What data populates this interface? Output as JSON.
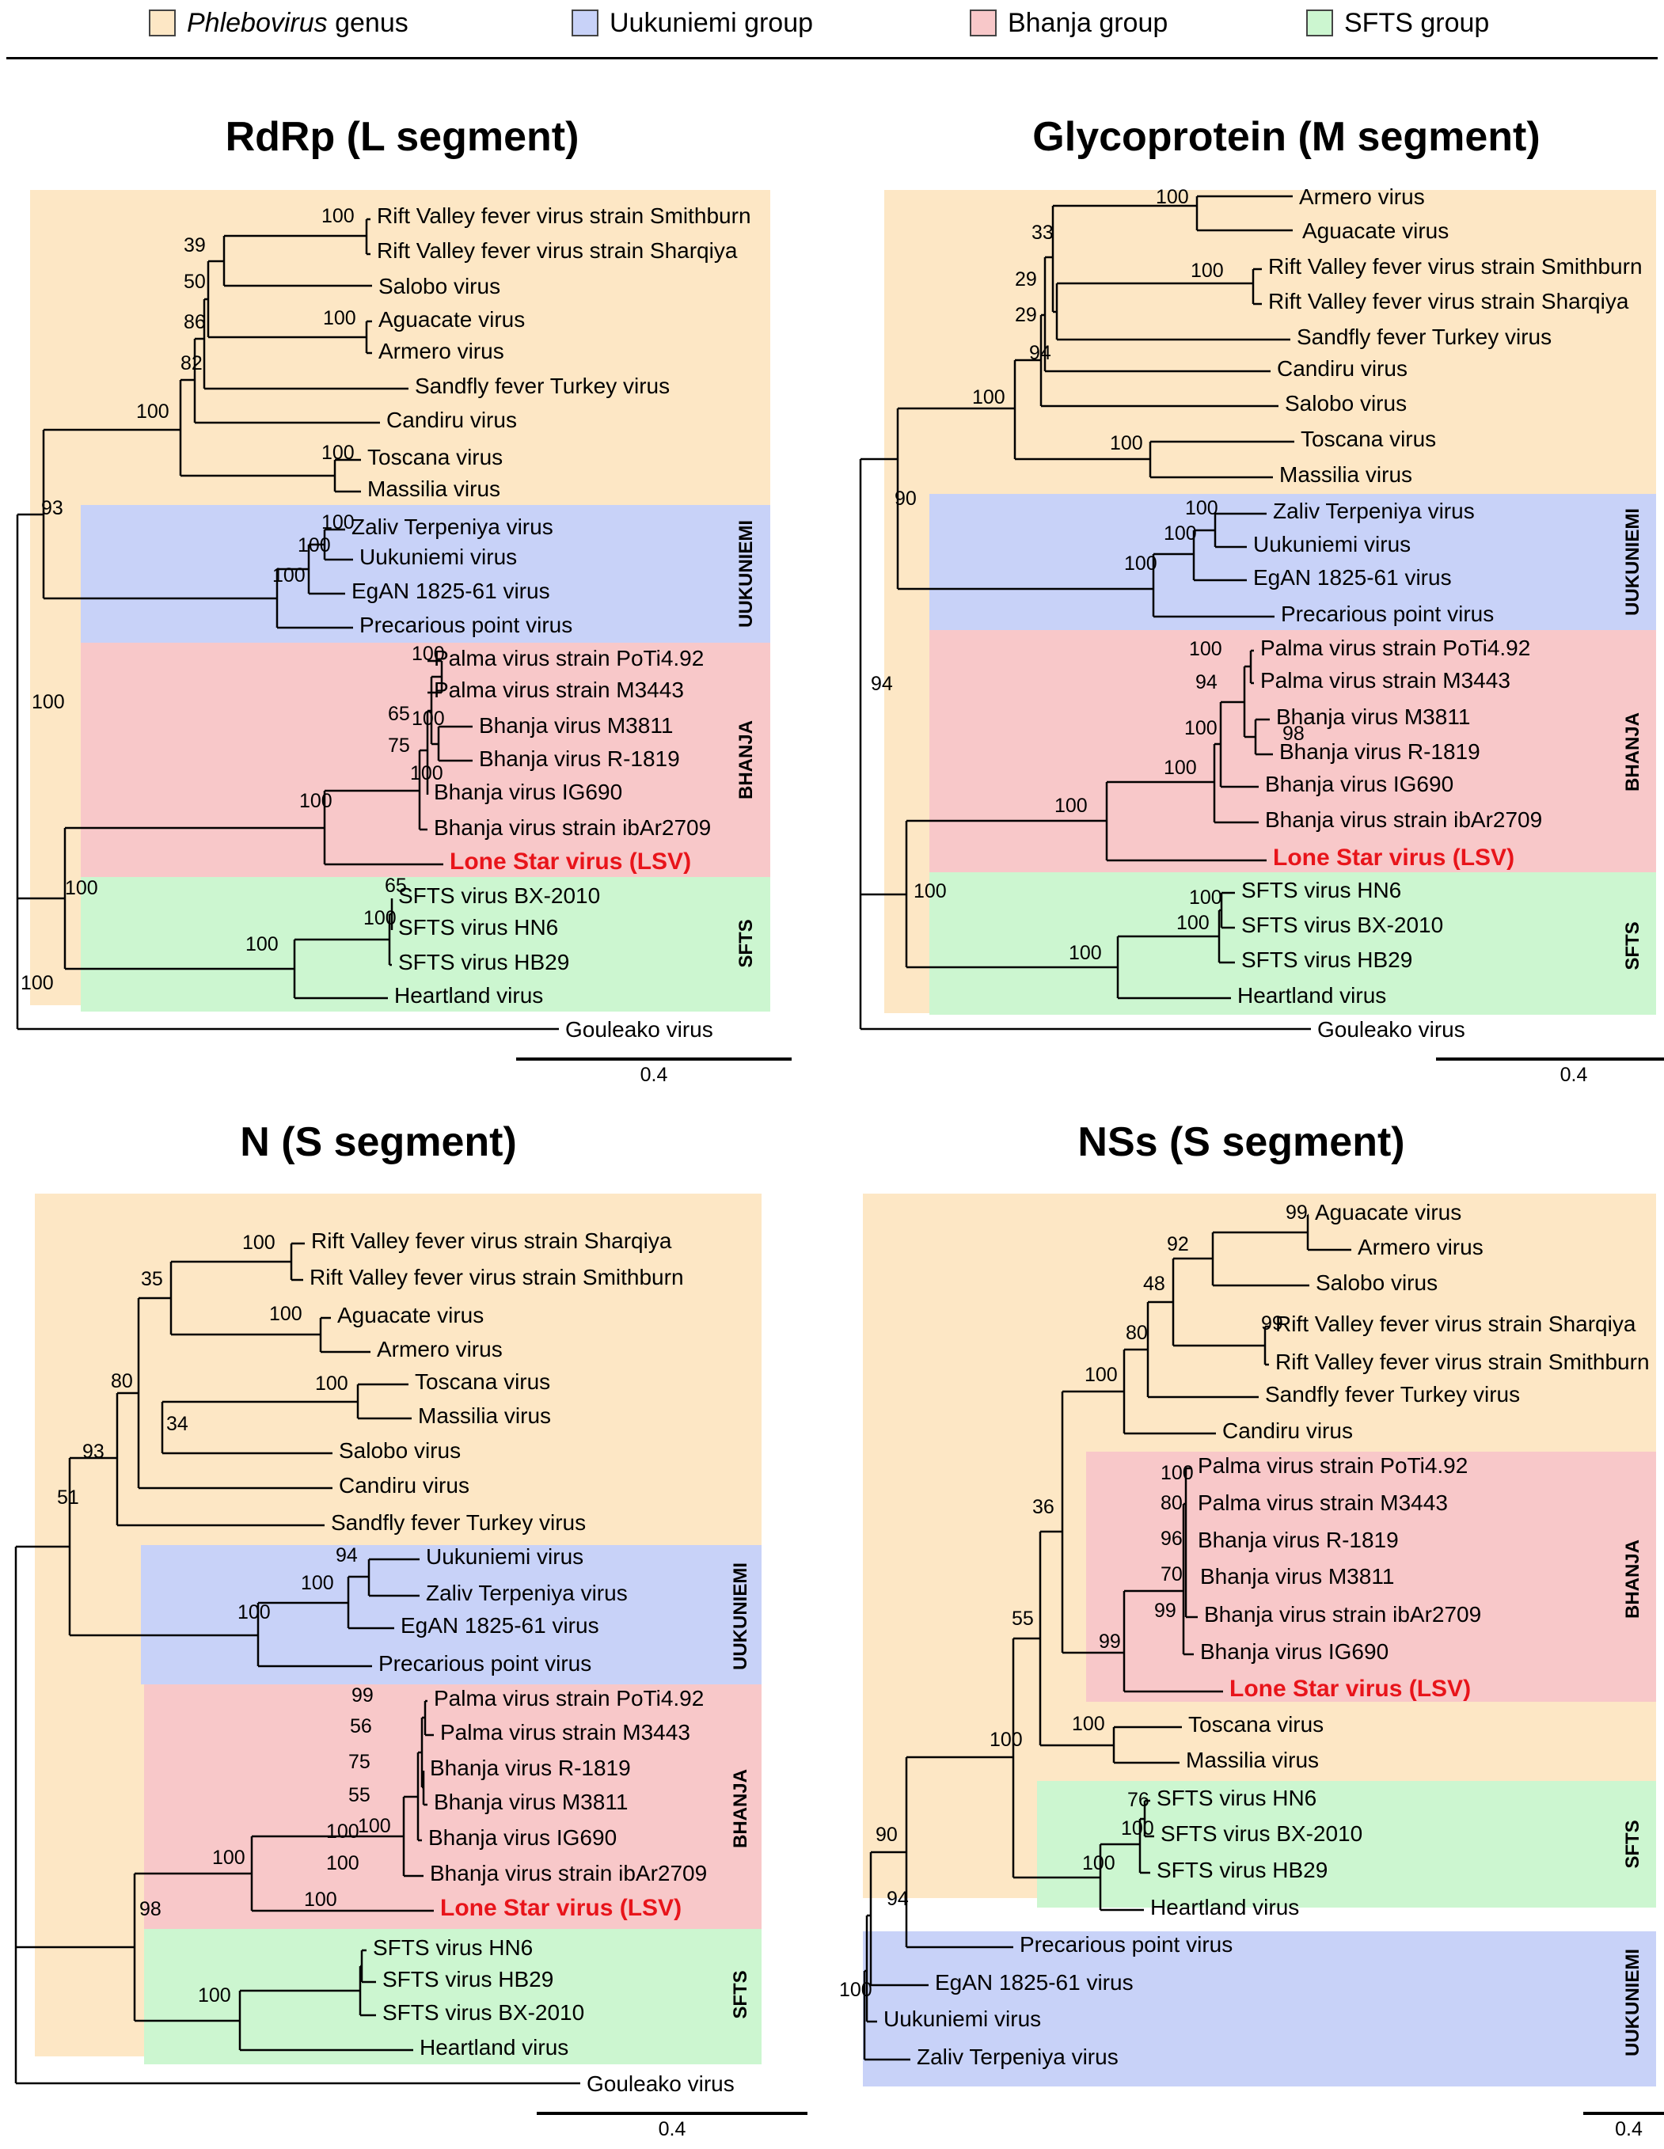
{
  "colors": {
    "phlebo": "#fde7c5",
    "uukuniemi": "#c8d2f8",
    "bhanja": "#f8c8c9",
    "sfts": "#ccf6d0",
    "lsv": "#e8141a"
  },
  "legend": [
    {
      "key": "phlebo",
      "text_italic": "Phlebovirus",
      "text": " genus"
    },
    {
      "key": "uukuniemi",
      "text": "Uukuniemi group"
    },
    {
      "key": "bhanja",
      "text": "Bhanja group"
    },
    {
      "key": "sfts",
      "text": "SFTS group"
    }
  ],
  "panels": [
    {
      "id": "rdrp",
      "title": "RdRp (L segment)",
      "scale": "0.4",
      "group_labels": [
        {
          "key": "uukuniemi",
          "text": "UUKUNIEMI"
        },
        {
          "key": "bhanja",
          "text": "BHANJA"
        },
        {
          "key": "sfts",
          "text": "SFTS"
        }
      ],
      "leaves": [
        "Rift Valley fever virus strain Smithburn",
        "Rift Valley fever virus strain Sharqiya",
        "Salobo virus",
        "Aguacate virus",
        "Armero virus",
        "Sandfly fever Turkey virus",
        "Candiru virus",
        "Toscana virus",
        "Massilia virus",
        "Zaliv Terpeniya virus",
        "Uukuniemi virus",
        "EgAN 1825-61 virus",
        "Precarious point virus",
        "Palma virus strain PoTi4.92",
        "Palma virus strain M3443",
        "Bhanja virus M3811",
        "Bhanja virus R-1819",
        "Bhanja virus IG690",
        "Bhanja virus strain ibAr2709",
        "Lone Star virus (LSV)",
        "SFTS virus BX-2010",
        "SFTS virus HN6",
        "SFTS virus HB29",
        "Heartland virus",
        "Gouleako virus"
      ],
      "bootstraps": [
        "100",
        "39",
        "50",
        "86",
        "100",
        "82",
        "100",
        "100",
        "93",
        "100",
        "100",
        "100",
        "100",
        "65",
        "100",
        "75",
        "100",
        "100",
        "100",
        "65",
        "100",
        "100",
        "100",
        "100"
      ]
    },
    {
      "id": "glyco",
      "title": "Glycoprotein (M segment)",
      "scale": "0.4",
      "group_labels": [
        {
          "key": "uukuniemi",
          "text": "UUKUNIEMI"
        },
        {
          "key": "bhanja",
          "text": "BHANJA"
        },
        {
          "key": "sfts",
          "text": "SFTS"
        }
      ],
      "leaves": [
        "Armero virus",
        "Aguacate virus",
        "Rift Valley fever virus strain Smithburn",
        "Rift Valley fever virus strain Sharqiya",
        "Sandfly fever Turkey virus",
        "Candiru virus",
        "Salobo virus",
        "Toscana virus",
        "Massilia virus",
        "Zaliv Terpeniya virus",
        "Uukuniemi virus",
        "EgAN 1825-61 virus",
        "Precarious point virus",
        "Palma virus strain PoTi4.92",
        "Palma virus strain M3443",
        "Bhanja virus M3811",
        "Bhanja virus R-1819",
        "Bhanja virus IG690",
        "Bhanja virus strain ibAr2709",
        "Lone Star virus (LSV)",
        "SFTS virus HN6",
        "SFTS virus BX-2010",
        "SFTS virus HB29",
        "Heartland virus",
        "Gouleako virus"
      ],
      "bootstraps": [
        "100",
        "33",
        "100",
        "29",
        "29",
        "94",
        "100",
        "100",
        "90",
        "100",
        "100",
        "100",
        "100",
        "94",
        "98",
        "100",
        "100",
        "100",
        "100",
        "100",
        "100",
        "100",
        "94"
      ]
    },
    {
      "id": "nprot",
      "title": "N (S segment)",
      "scale": "0.4",
      "group_labels": [
        {
          "key": "uukuniemi",
          "text": "UUKUNIEMI"
        },
        {
          "key": "bhanja",
          "text": "BHANJA"
        },
        {
          "key": "sfts",
          "text": "SFTS"
        }
      ],
      "leaves": [
        "Rift Valley fever virus strain Sharqiya",
        "Rift Valley fever virus strain Smithburn",
        "Aguacate virus",
        "Armero virus",
        "Toscana virus",
        "Massilia virus",
        "Salobo virus",
        "Candiru virus",
        "Sandfly fever Turkey virus",
        "Uukuniemi virus",
        "Zaliv Terpeniya virus",
        "EgAN 1825-61 virus",
        "Precarious point virus",
        "Palma virus strain PoTi4.92",
        "Palma virus strain M3443",
        "Bhanja virus R-1819",
        "Bhanja virus M3811",
        "Bhanja virus IG690",
        "Bhanja virus strain ibAr2709",
        "Lone Star virus (LSV)",
        "SFTS virus HN6",
        "SFTS virus HB29",
        "SFTS virus BX-2010",
        "Heartland virus",
        "Gouleako virus"
      ],
      "bootstraps": [
        "100",
        "35",
        "100",
        "80",
        "100",
        "34",
        "93",
        "51",
        "94",
        "100",
        "100",
        "99",
        "56",
        "75",
        "55",
        "100",
        "100",
        "100",
        "100",
        "100",
        "98",
        "100"
      ]
    },
    {
      "id": "nss",
      "title": "NSs (S segment)",
      "scale": "0.4",
      "group_labels": [
        {
          "key": "bhanja",
          "text": "BHANJA"
        },
        {
          "key": "sfts",
          "text": "SFTS"
        },
        {
          "key": "uukuniemi",
          "text": "UUKUNIEMI"
        }
      ],
      "leaves": [
        "Aguacate virus",
        "Armero virus",
        "Salobo virus",
        "Rift Valley fever virus strain Sharqiya",
        "Rift Valley fever virus strain Smithburn",
        "Sandfly fever Turkey virus",
        "Candiru virus",
        "Palma virus strain PoTi4.92",
        "Palma virus strain M3443",
        "Bhanja virus R-1819",
        "Bhanja virus M3811",
        "Bhanja virus strain ibAr2709",
        "Bhanja virus IG690",
        "Lone Star virus (LSV)",
        "Toscana virus",
        "Massilia virus",
        "SFTS virus HN6",
        "SFTS virus BX-2010",
        "SFTS virus HB29",
        "Heartland virus",
        "Precarious point virus",
        "EgAN 1825-61 virus",
        "Uukuniemi virus",
        "Zaliv Terpeniya virus"
      ],
      "bootstraps": [
        "99",
        "92",
        "48",
        "99",
        "80",
        "100",
        "100",
        "80",
        "96",
        "70",
        "99",
        "36",
        "99",
        "55",
        "100",
        "100",
        "76",
        "100",
        "100",
        "90",
        "94",
        "100"
      ]
    }
  ]
}
